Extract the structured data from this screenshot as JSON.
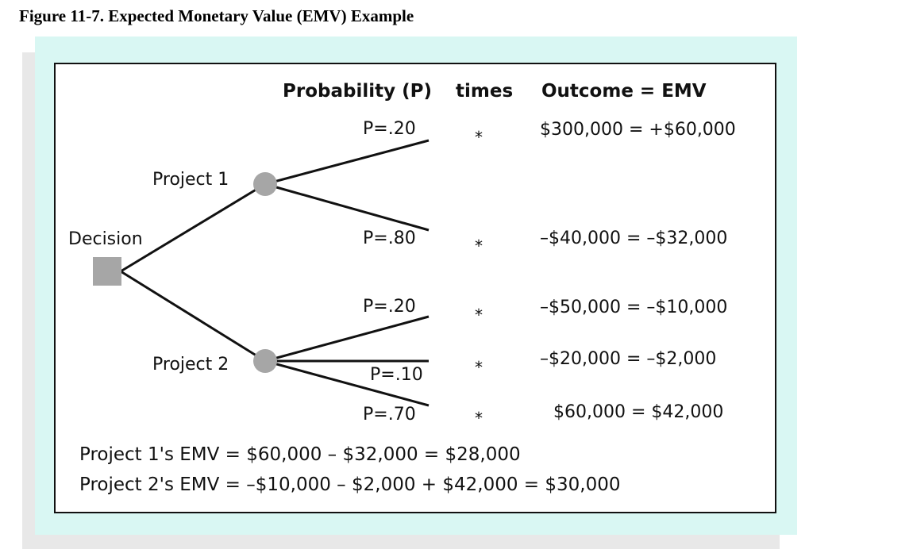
{
  "title": "Figure 11-7. Expected Monetary Value (EMV) Example",
  "headers": {
    "probability": "Probability (P)",
    "times": "times",
    "outcome": "Outcome = EMV"
  },
  "decision_label": "Decision",
  "projects": [
    {
      "label": "Project 1",
      "branches": [
        {
          "prob": "P=.20",
          "times": "*",
          "outcome": "$300,000 = +$60,000"
        },
        {
          "prob": "P=.80",
          "times": "*",
          "outcome": "–$40,000 = –$32,000"
        }
      ]
    },
    {
      "label": "Project 2",
      "branches": [
        {
          "prob": "P=.20",
          "times": "*",
          "outcome": "–$50,000 = –$10,000"
        },
        {
          "prob": "P=.10",
          "times": "*",
          "outcome": "–$20,000 = –$2,000"
        },
        {
          "prob": "P=.70",
          "times": "*",
          "outcome": "$60,000 = $42,000"
        }
      ]
    }
  ],
  "summary": [
    "Project 1's EMV = $60,000 – $32,000 = $28,000",
    "Project 2's EMV = –$10,000 – $2,000 + $42,000 = $30,000"
  ],
  "colors": {
    "panel": "#d9f7f3",
    "node": "#a6a6a6",
    "line": "#111111"
  }
}
